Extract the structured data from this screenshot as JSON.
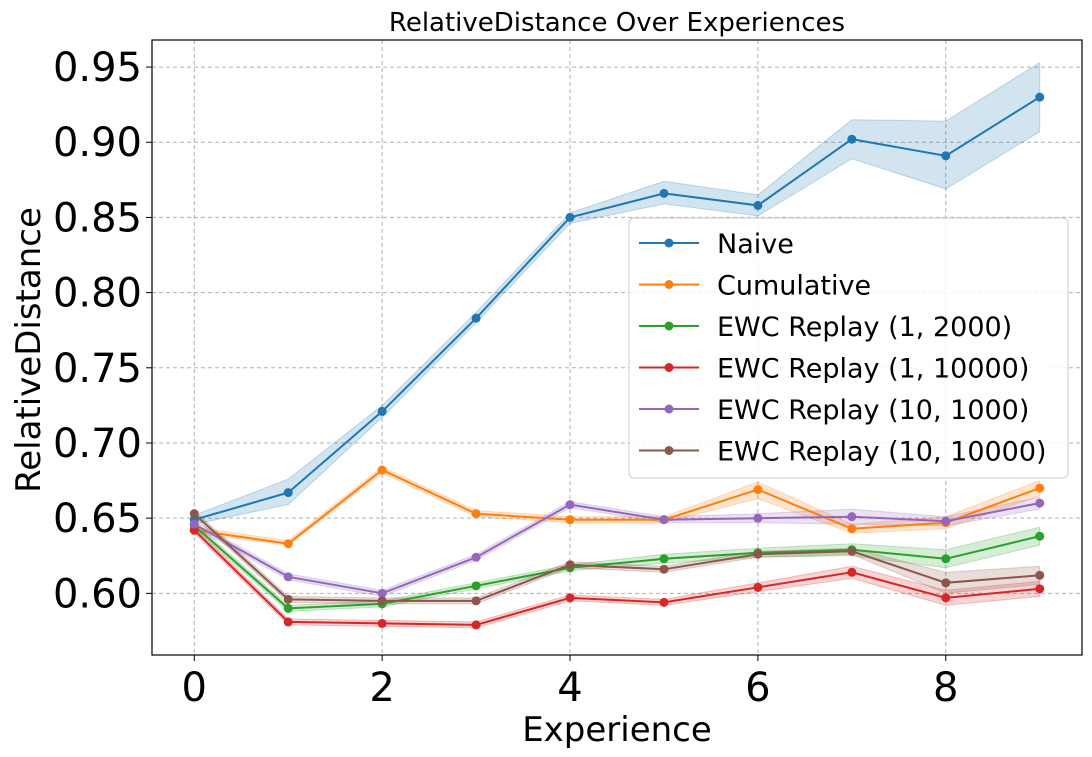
{
  "chart_data": {
    "type": "line",
    "title": "RelativeDistance Over Experiences",
    "xlabel": "Experience",
    "ylabel": "RelativeDistance",
    "xlim": [
      -0.45,
      9.45
    ],
    "ylim": [
      0.559,
      0.968
    ],
    "xticks": [
      0,
      2,
      4,
      6,
      8
    ],
    "xtick_labels": [
      "0",
      "2",
      "4",
      "6",
      "8"
    ],
    "yticks": [
      0.6,
      0.65,
      0.7,
      0.75,
      0.8,
      0.85,
      0.9,
      0.95
    ],
    "ytick_labels": [
      "0.60",
      "0.65",
      "0.70",
      "0.75",
      "0.80",
      "0.85",
      "0.90",
      "0.95"
    ],
    "grid": true,
    "legend_position": "center-right",
    "x": [
      0,
      1,
      2,
      3,
      4,
      5,
      6,
      7,
      8,
      9
    ],
    "series": [
      {
        "name": "Naive",
        "color": "#1f77b4",
        "values": [
          0.649,
          0.667,
          0.721,
          0.783,
          0.85,
          0.866,
          0.858,
          0.902,
          0.891,
          0.93
        ],
        "lower": [
          0.646,
          0.659,
          0.717,
          0.78,
          0.846,
          0.859,
          0.851,
          0.889,
          0.869,
          0.907
        ],
        "upper": [
          0.652,
          0.676,
          0.725,
          0.787,
          0.853,
          0.874,
          0.865,
          0.915,
          0.914,
          0.953
        ]
      },
      {
        "name": "Cumulative",
        "color": "#ff7f0e",
        "values": [
          0.642,
          0.633,
          0.682,
          0.653,
          0.649,
          0.649,
          0.669,
          0.643,
          0.647,
          0.67
        ],
        "lower": [
          0.64,
          0.632,
          0.68,
          0.651,
          0.647,
          0.647,
          0.663,
          0.64,
          0.643,
          0.665
        ],
        "upper": [
          0.644,
          0.635,
          0.684,
          0.655,
          0.651,
          0.651,
          0.674,
          0.646,
          0.651,
          0.675
        ]
      },
      {
        "name": "EWC Replay (1, 2000)",
        "color": "#2ca02c",
        "values": [
          0.645,
          0.59,
          0.593,
          0.605,
          0.617,
          0.623,
          0.627,
          0.629,
          0.623,
          0.638
        ],
        "lower": [
          0.643,
          0.588,
          0.591,
          0.603,
          0.615,
          0.62,
          0.624,
          0.625,
          0.617,
          0.632
        ],
        "upper": [
          0.647,
          0.592,
          0.595,
          0.607,
          0.619,
          0.626,
          0.63,
          0.633,
          0.629,
          0.644
        ]
      },
      {
        "name": "EWC Replay (1, 10000)",
        "color": "#d62728",
        "values": [
          0.642,
          0.581,
          0.58,
          0.579,
          0.597,
          0.594,
          0.604,
          0.614,
          0.597,
          0.603
        ],
        "lower": [
          0.64,
          0.579,
          0.578,
          0.577,
          0.595,
          0.592,
          0.601,
          0.61,
          0.592,
          0.598
        ],
        "upper": [
          0.644,
          0.583,
          0.582,
          0.581,
          0.599,
          0.596,
          0.607,
          0.618,
          0.602,
          0.608
        ]
      },
      {
        "name": "EWC Replay (10, 1000)",
        "color": "#9467bd",
        "values": [
          0.646,
          0.611,
          0.6,
          0.624,
          0.659,
          0.649,
          0.65,
          0.651,
          0.648,
          0.66
        ],
        "lower": [
          0.644,
          0.609,
          0.598,
          0.622,
          0.657,
          0.647,
          0.647,
          0.646,
          0.645,
          0.656
        ],
        "upper": [
          0.648,
          0.613,
          0.602,
          0.626,
          0.661,
          0.651,
          0.653,
          0.656,
          0.651,
          0.664
        ]
      },
      {
        "name": "EWC Replay (10, 10000)",
        "color": "#8c564b",
        "values": [
          0.653,
          0.596,
          0.595,
          0.595,
          0.619,
          0.616,
          0.626,
          0.628,
          0.607,
          0.612
        ],
        "lower": [
          0.651,
          0.594,
          0.593,
          0.593,
          0.617,
          0.614,
          0.624,
          0.626,
          0.6,
          0.606
        ],
        "upper": [
          0.655,
          0.598,
          0.597,
          0.597,
          0.621,
          0.618,
          0.628,
          0.63,
          0.614,
          0.618
        ]
      }
    ]
  }
}
